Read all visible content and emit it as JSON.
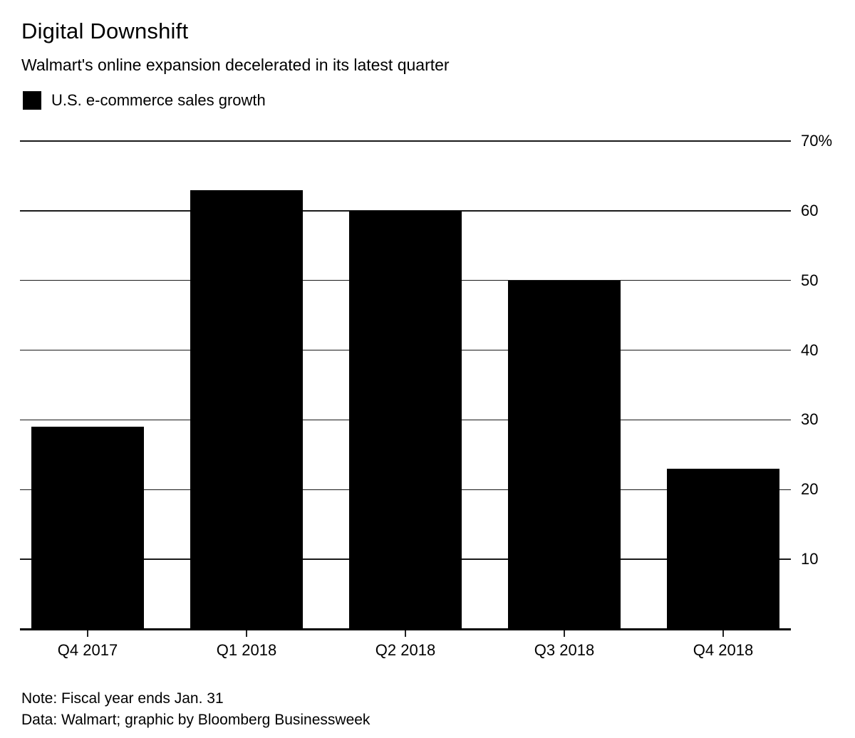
{
  "chart_data": {
    "type": "bar",
    "title": "Digital Downshift",
    "subtitle": "Walmart's online expansion decelerated in its latest quarter",
    "legend": {
      "label": "U.S. e-commerce sales growth",
      "swatch_color": "#000000"
    },
    "categories": [
      "Q4 2017",
      "Q1 2018",
      "Q2 2018",
      "Q3 2018",
      "Q4 2018"
    ],
    "values": [
      29,
      63,
      60,
      50,
      23
    ],
    "unit": "percent",
    "ylim": [
      0,
      70
    ],
    "yticks": [
      {
        "value": 70,
        "label": "70%"
      },
      {
        "value": 60,
        "label": "60"
      },
      {
        "value": 50,
        "label": "50"
      },
      {
        "value": 40,
        "label": "40"
      },
      {
        "value": 30,
        "label": "30"
      },
      {
        "value": 20,
        "label": "20"
      },
      {
        "value": 10,
        "label": "10"
      }
    ],
    "grid": "horizontal",
    "y_axis_label_side": "right",
    "legend_position": "top-left",
    "bar_color": "#000000",
    "background_color": "#ffffff"
  },
  "notes": {
    "note": "Note: Fiscal year ends Jan. 31",
    "source": "Data: Walmart; graphic by Bloomberg Businessweek"
  }
}
